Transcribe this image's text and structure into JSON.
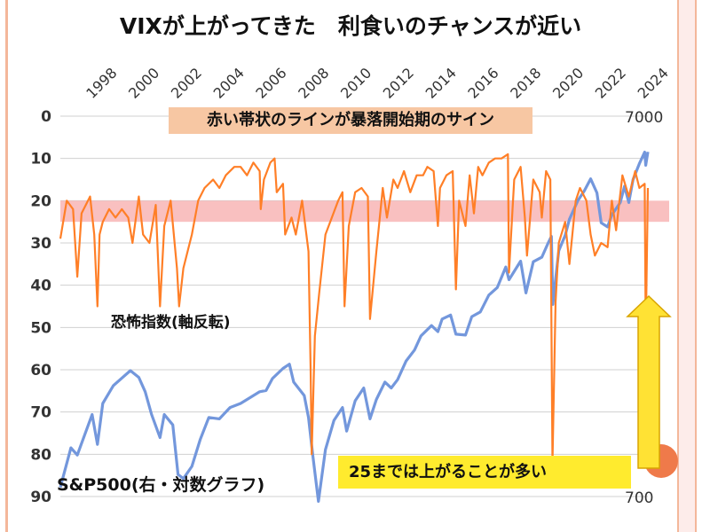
{
  "title": "VIXが上がってきた　利食いのチャンスが近い",
  "annotations": {
    "top_note": "赤い帯状のラインが暴落開始期のサイン",
    "vix_series_label": "恐怖指数(軸反転)",
    "sp_series_label": "S&P500(右・対数グラフ)",
    "bottom_note": "25までは上がることが多い"
  },
  "colors": {
    "vix": "#ff7f27",
    "sp500": "#7397dc",
    "danger_band": "#f8b5b5",
    "arrow_fill": "#ffe234",
    "arrow_stroke": "#d9a400",
    "axis_text": "#333333",
    "grid": "#d0d0d0"
  },
  "chart_data": {
    "type": "line",
    "title": "VIXが上がってきた　利食いのチャンスが近い",
    "x_tick_labels": [
      "1998",
      "2000",
      "2002",
      "2004",
      "2006",
      "2008",
      "2010",
      "2012",
      "2014",
      "2016",
      "2018",
      "2020",
      "2022",
      "2024"
    ],
    "x_range": [
      1997,
      2024.7
    ],
    "left_axis": {
      "label": "恐怖指数(軸反転)",
      "inverted": true,
      "range": [
        0,
        90
      ],
      "ticks": [
        0,
        10,
        20,
        30,
        40,
        50,
        60,
        70,
        80,
        90
      ]
    },
    "right_axis": {
      "label": "S&P500(右・対数グラフ)",
      "scale": "log",
      "range": [
        700,
        7000
      ],
      "tick_labels": [
        "7000",
        "700"
      ]
    },
    "danger_band": {
      "axis": "left",
      "from": 20,
      "to": 25
    },
    "grid": "horizontal",
    "series": [
      {
        "name": "恐怖指数(軸反転)",
        "axis": "left",
        "points": [
          [
            1997.0,
            29
          ],
          [
            1997.3,
            20
          ],
          [
            1997.6,
            22
          ],
          [
            1997.8,
            38
          ],
          [
            1998.0,
            23
          ],
          [
            1998.4,
            19
          ],
          [
            1998.6,
            28
          ],
          [
            1998.75,
            45
          ],
          [
            1998.85,
            28
          ],
          [
            1999.0,
            25
          ],
          [
            1999.3,
            22
          ],
          [
            1999.6,
            24
          ],
          [
            1999.9,
            22
          ],
          [
            2000.2,
            24
          ],
          [
            2000.4,
            30
          ],
          [
            2000.7,
            19
          ],
          [
            2000.9,
            28
          ],
          [
            2001.2,
            30
          ],
          [
            2001.5,
            21
          ],
          [
            2001.7,
            45
          ],
          [
            2001.9,
            26
          ],
          [
            2002.2,
            20
          ],
          [
            2002.5,
            36
          ],
          [
            2002.6,
            45
          ],
          [
            2002.8,
            36
          ],
          [
            2003.0,
            32
          ],
          [
            2003.2,
            28
          ],
          [
            2003.5,
            20
          ],
          [
            2003.8,
            17
          ],
          [
            2004.2,
            15
          ],
          [
            2004.5,
            17
          ],
          [
            2004.8,
            14
          ],
          [
            2005.2,
            12
          ],
          [
            2005.5,
            12
          ],
          [
            2005.8,
            14
          ],
          [
            2006.1,
            11
          ],
          [
            2006.4,
            13
          ],
          [
            2006.45,
            22
          ],
          [
            2006.6,
            15
          ],
          [
            2006.9,
            11
          ],
          [
            2007.1,
            10
          ],
          [
            2007.2,
            18
          ],
          [
            2007.5,
            16
          ],
          [
            2007.6,
            28
          ],
          [
            2007.9,
            24
          ],
          [
            2008.1,
            28
          ],
          [
            2008.4,
            20
          ],
          [
            2008.7,
            32
          ],
          [
            2008.8,
            60
          ],
          [
            2008.85,
            80
          ],
          [
            2009.0,
            52
          ],
          [
            2009.2,
            42
          ],
          [
            2009.5,
            28
          ],
          [
            2009.8,
            24
          ],
          [
            2010.1,
            20
          ],
          [
            2010.3,
            18
          ],
          [
            2010.4,
            45
          ],
          [
            2010.6,
            26
          ],
          [
            2010.9,
            18
          ],
          [
            2011.2,
            17
          ],
          [
            2011.5,
            19
          ],
          [
            2011.6,
            48
          ],
          [
            2011.9,
            32
          ],
          [
            2012.2,
            17
          ],
          [
            2012.4,
            24
          ],
          [
            2012.7,
            15
          ],
          [
            2012.9,
            17
          ],
          [
            2013.2,
            13
          ],
          [
            2013.5,
            18
          ],
          [
            2013.8,
            14
          ],
          [
            2014.1,
            14
          ],
          [
            2014.3,
            12
          ],
          [
            2014.6,
            13
          ],
          [
            2014.8,
            26
          ],
          [
            2014.9,
            17
          ],
          [
            2015.2,
            14
          ],
          [
            2015.5,
            13
          ],
          [
            2015.65,
            41
          ],
          [
            2015.8,
            20
          ],
          [
            2016.1,
            26
          ],
          [
            2016.3,
            14
          ],
          [
            2016.5,
            23
          ],
          [
            2016.7,
            12
          ],
          [
            2016.9,
            14
          ],
          [
            2017.2,
            11
          ],
          [
            2017.5,
            10
          ],
          [
            2017.8,
            10
          ],
          [
            2018.1,
            9
          ],
          [
            2018.15,
            37
          ],
          [
            2018.4,
            15
          ],
          [
            2018.7,
            12
          ],
          [
            2018.9,
            24
          ],
          [
            2019.0,
            33
          ],
          [
            2019.3,
            15
          ],
          [
            2019.6,
            18
          ],
          [
            2019.7,
            24
          ],
          [
            2019.9,
            13
          ],
          [
            2020.1,
            15
          ],
          [
            2020.2,
            82
          ],
          [
            2020.35,
            44
          ],
          [
            2020.5,
            30
          ],
          [
            2020.8,
            25
          ],
          [
            2021.0,
            35
          ],
          [
            2021.3,
            20
          ],
          [
            2021.5,
            17
          ],
          [
            2021.8,
            20
          ],
          [
            2022.0,
            28
          ],
          [
            2022.2,
            33
          ],
          [
            2022.5,
            30
          ],
          [
            2022.8,
            31
          ],
          [
            2023.0,
            20
          ],
          [
            2023.2,
            27
          ],
          [
            2023.5,
            14
          ],
          [
            2023.8,
            19
          ],
          [
            2024.1,
            13
          ],
          [
            2024.3,
            17
          ],
          [
            2024.55,
            16
          ],
          [
            2024.6,
            52
          ],
          [
            2024.7,
            17
          ]
        ]
      },
      {
        "name": "S&P500(右・対数グラフ)",
        "axis": "right",
        "points": [
          [
            1997.0,
            740
          ],
          [
            1997.5,
            940
          ],
          [
            1997.8,
            900
          ],
          [
            1998.5,
            1150
          ],
          [
            1998.75,
            960
          ],
          [
            1999.0,
            1230
          ],
          [
            1999.5,
            1370
          ],
          [
            2000.0,
            1450
          ],
          [
            2000.3,
            1500
          ],
          [
            2000.7,
            1440
          ],
          [
            2001.0,
            1320
          ],
          [
            2001.3,
            1150
          ],
          [
            2001.7,
            1000
          ],
          [
            2001.9,
            1150
          ],
          [
            2002.3,
            1080
          ],
          [
            2002.55,
            800
          ],
          [
            2002.8,
            780
          ],
          [
            2003.2,
            840
          ],
          [
            2003.6,
            990
          ],
          [
            2004.0,
            1130
          ],
          [
            2004.5,
            1120
          ],
          [
            2005.0,
            1200
          ],
          [
            2005.5,
            1230
          ],
          [
            2006.0,
            1280
          ],
          [
            2006.4,
            1320
          ],
          [
            2006.7,
            1330
          ],
          [
            2007.0,
            1430
          ],
          [
            2007.5,
            1520
          ],
          [
            2007.8,
            1560
          ],
          [
            2008.0,
            1400
          ],
          [
            2008.5,
            1290
          ],
          [
            2008.7,
            1130
          ],
          [
            2008.9,
            900
          ],
          [
            2009.17,
            680
          ],
          [
            2009.5,
            930
          ],
          [
            2009.9,
            1110
          ],
          [
            2010.3,
            1200
          ],
          [
            2010.5,
            1040
          ],
          [
            2010.9,
            1250
          ],
          [
            2011.3,
            1350
          ],
          [
            2011.6,
            1120
          ],
          [
            2011.9,
            1260
          ],
          [
            2012.3,
            1400
          ],
          [
            2012.6,
            1350
          ],
          [
            2012.9,
            1420
          ],
          [
            2013.3,
            1590
          ],
          [
            2013.7,
            1700
          ],
          [
            2014.0,
            1850
          ],
          [
            2014.5,
            1970
          ],
          [
            2014.8,
            1900
          ],
          [
            2015.0,
            2050
          ],
          [
            2015.4,
            2100
          ],
          [
            2015.65,
            1870
          ],
          [
            2016.1,
            1860
          ],
          [
            2016.4,
            2080
          ],
          [
            2016.8,
            2140
          ],
          [
            2017.2,
            2370
          ],
          [
            2017.6,
            2480
          ],
          [
            2018.0,
            2810
          ],
          [
            2018.15,
            2600
          ],
          [
            2018.7,
            2910
          ],
          [
            2018.95,
            2400
          ],
          [
            2019.3,
            2900
          ],
          [
            2019.7,
            2980
          ],
          [
            2020.0,
            3250
          ],
          [
            2020.15,
            3380
          ],
          [
            2020.22,
            2240
          ],
          [
            2020.5,
            3100
          ],
          [
            2020.8,
            3400
          ],
          [
            2021.0,
            3750
          ],
          [
            2021.4,
            4200
          ],
          [
            2021.7,
            4450
          ],
          [
            2022.0,
            4790
          ],
          [
            2022.3,
            4400
          ],
          [
            2022.5,
            3670
          ],
          [
            2022.8,
            3580
          ],
          [
            2023.0,
            3850
          ],
          [
            2023.4,
            4150
          ],
          [
            2023.6,
            4580
          ],
          [
            2023.8,
            4150
          ],
          [
            2024.0,
            4770
          ],
          [
            2024.3,
            5250
          ],
          [
            2024.55,
            5630
          ],
          [
            2024.6,
            5200
          ],
          [
            2024.7,
            5640
          ]
        ]
      }
    ]
  }
}
